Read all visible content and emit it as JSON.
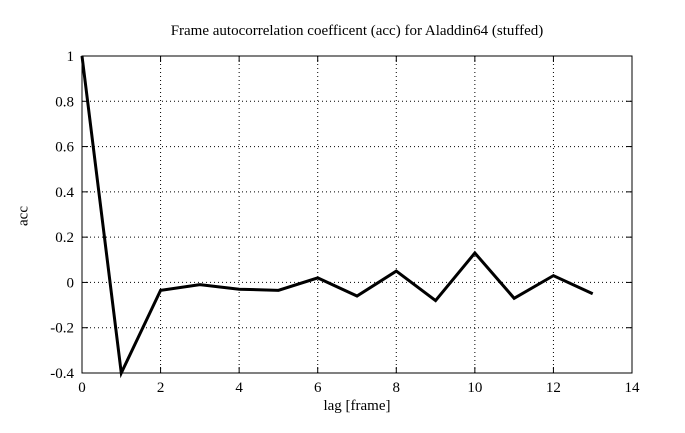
{
  "page": {
    "background_color": "#ffffff",
    "foreground_color": "#000000"
  },
  "chart_data": {
    "type": "line",
    "title": "Frame autocorrelation coefficent (acc) for Aladdin64 (stuffed)",
    "xlabel": "lag [frame]",
    "ylabel": "acc",
    "xlim": [
      0,
      14
    ],
    "ylim": [
      -0.4,
      1
    ],
    "xticks": {
      "values": [
        0,
        2,
        4,
        6,
        8,
        10,
        12,
        14
      ],
      "labels": [
        "0",
        "2",
        "4",
        "6",
        "8",
        "10",
        "12",
        "14"
      ]
    },
    "yticks": {
      "values": [
        1,
        0.8,
        0.6,
        0.4,
        0.2,
        0,
        -0.2,
        -0.4
      ],
      "labels": [
        "1",
        "0.8",
        "0.6",
        "0.4",
        "0.2",
        "0",
        "-0.2",
        "-0.4"
      ]
    },
    "grid": {
      "style": "dotted",
      "shown": true,
      "note": "dotted gridlines at interior major ticks, mirrored inward tick marks on all four borders"
    },
    "legend": "none",
    "series": [
      {
        "name": "acc",
        "color": "#000000",
        "line_width": 3,
        "x": [
          0,
          1,
          2,
          3,
          4,
          5,
          6,
          7,
          8,
          9,
          10,
          11,
          12,
          13
        ],
        "y": [
          1.0,
          -0.4,
          -0.035,
          -0.01,
          -0.03,
          -0.035,
          0.02,
          -0.06,
          0.05,
          -0.08,
          0.13,
          -0.07,
          0.03,
          -0.05
        ]
      }
    ]
  }
}
